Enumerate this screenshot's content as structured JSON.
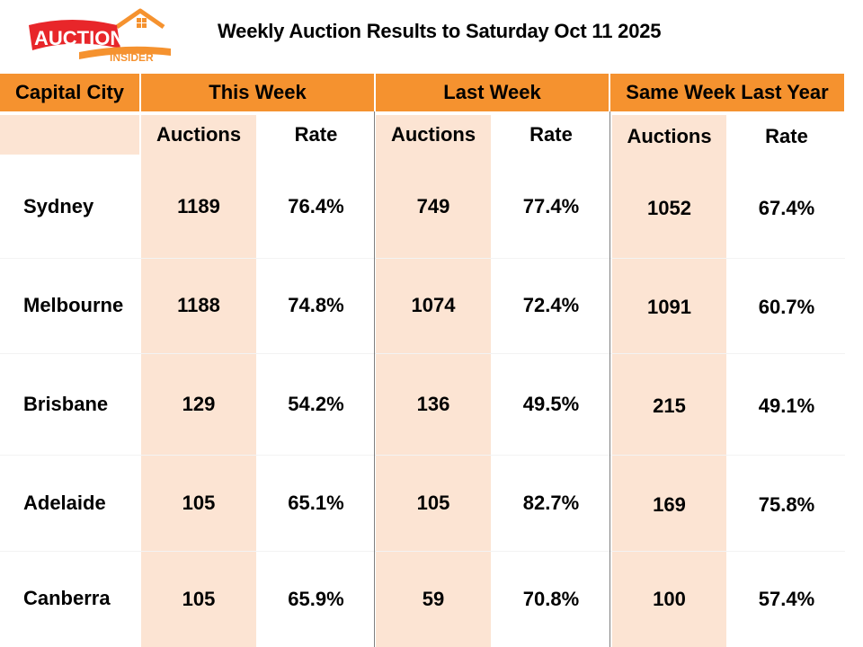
{
  "logo": {
    "word": "AUCTION",
    "tagline": "INSIDER"
  },
  "title": "Weekly Auction Results to Saturday Oct 11 2025",
  "headers": {
    "capital_city": "Capital City",
    "this_week": "This Week",
    "last_week": "Last Week",
    "same_week_last_year": "Same Week Last Year"
  },
  "subheaders": {
    "auctions": "Auctions",
    "rate": "Rate"
  },
  "rows": [
    {
      "city": "Sydney",
      "tw_auctions": "1189",
      "tw_rate": "76.4%",
      "lw_auctions": "749",
      "lw_rate": "77.4%",
      "ly_auctions": "1052",
      "ly_rate": "67.4%"
    },
    {
      "city": "Melbourne",
      "tw_auctions": "1188",
      "tw_rate": "74.8%",
      "lw_auctions": "1074",
      "lw_rate": "72.4%",
      "ly_auctions": "1091",
      "ly_rate": "60.7%"
    },
    {
      "city": "Brisbane",
      "tw_auctions": "129",
      "tw_rate": "54.2%",
      "lw_auctions": "136",
      "lw_rate": "49.5%",
      "ly_auctions": "215",
      "ly_rate": "49.1%"
    },
    {
      "city": "Adelaide",
      "tw_auctions": "105",
      "tw_rate": "65.1%",
      "lw_auctions": "105",
      "lw_rate": "82.7%",
      "ly_auctions": "169",
      "ly_rate": "75.8%"
    },
    {
      "city": "Canberra",
      "tw_auctions": "105",
      "tw_rate": "65.9%",
      "lw_auctions": "59",
      "lw_rate": "70.8%",
      "ly_auctions": "100",
      "ly_rate": "57.4%"
    }
  ],
  "colors": {
    "header_orange": "#f5922f",
    "band_peach": "#fce4d3",
    "logo_red": "#e8262a",
    "logo_orange": "#f5922f"
  }
}
